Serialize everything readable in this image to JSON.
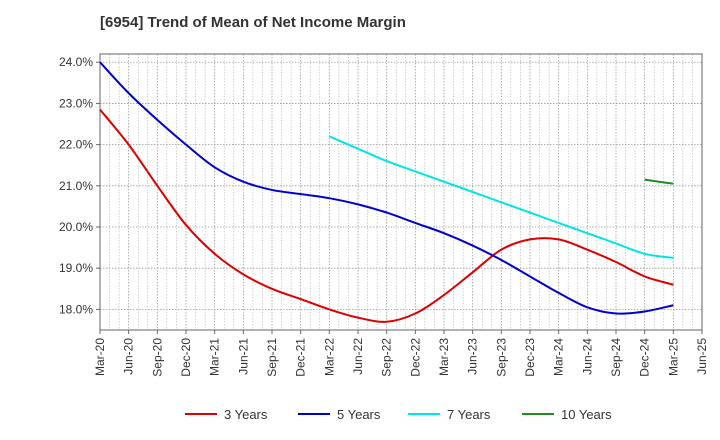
{
  "title": "[6954]  Trend of Mean of Net Income Margin",
  "chart_data": {
    "type": "line",
    "title": "[6954]  Trend of Mean of Net Income Margin",
    "xlabel": "",
    "ylabel": "",
    "x_ticks": [
      "Mar-20",
      "Jun-20",
      "Sep-20",
      "Dec-20",
      "Mar-21",
      "Jun-21",
      "Sep-21",
      "Dec-21",
      "Mar-22",
      "Jun-22",
      "Sep-22",
      "Dec-22",
      "Mar-23",
      "Jun-23",
      "Sep-23",
      "Dec-23",
      "Mar-24",
      "Jun-24",
      "Sep-24",
      "Dec-24",
      "Mar-25",
      "Jun-25"
    ],
    "y_ticks": [
      "18.0%",
      "19.0%",
      "20.0%",
      "21.0%",
      "22.0%",
      "23.0%",
      "24.0%"
    ],
    "ylim": [
      17.5,
      24.2
    ],
    "grid": true,
    "legend_position": "bottom",
    "series": [
      {
        "name": "3 Years",
        "color": "#dd0000",
        "values": [
          22.85,
          22.0,
          21.0,
          20.05,
          19.35,
          18.85,
          18.5,
          18.25,
          18.0,
          17.8,
          17.7,
          17.9,
          18.35,
          18.9,
          19.45,
          19.7,
          19.7,
          19.45,
          19.15,
          18.8,
          18.6
        ]
      },
      {
        "name": "5 Years",
        "color": "#0000cc",
        "values": [
          24.0,
          23.25,
          22.6,
          22.0,
          21.45,
          21.1,
          20.9,
          20.8,
          20.7,
          20.55,
          20.35,
          20.1,
          19.85,
          19.55,
          19.2,
          18.8,
          18.4,
          18.05,
          17.9,
          17.95,
          18.1
        ]
      },
      {
        "name": "7 Years",
        "color": "#00e5e5",
        "values": [
          null,
          null,
          null,
          null,
          null,
          null,
          null,
          null,
          22.2,
          21.9,
          21.6,
          21.35,
          21.1,
          20.85,
          20.6,
          20.35,
          20.1,
          19.85,
          19.6,
          19.35,
          19.25
        ]
      },
      {
        "name": "10 Years",
        "color": "#228b22",
        "values": [
          null,
          null,
          null,
          null,
          null,
          null,
          null,
          null,
          null,
          null,
          null,
          null,
          null,
          null,
          null,
          null,
          null,
          null,
          null,
          21.15,
          21.05
        ]
      }
    ]
  }
}
